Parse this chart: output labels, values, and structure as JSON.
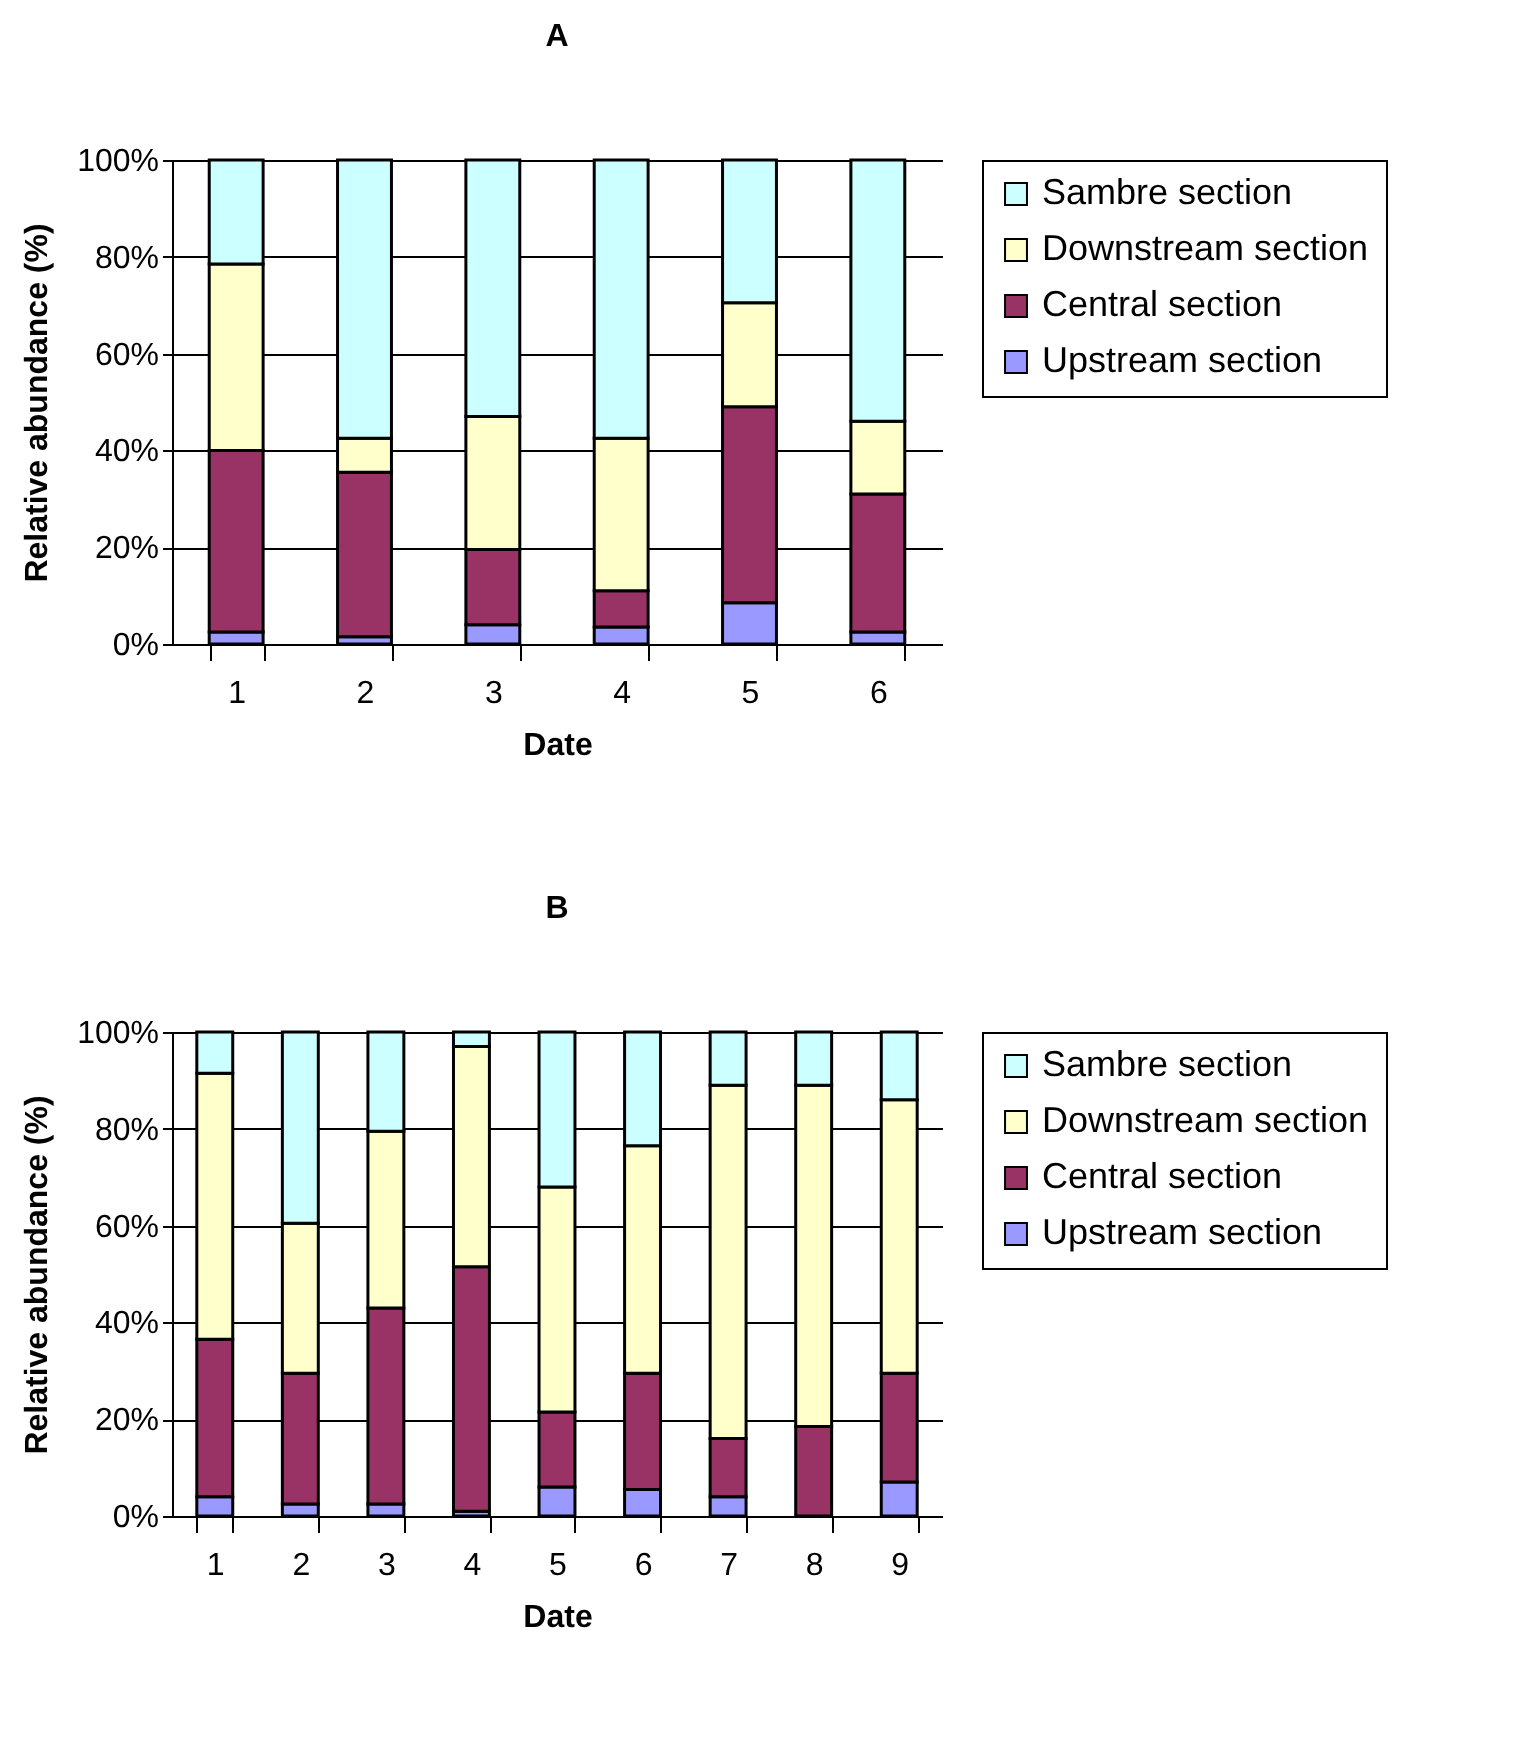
{
  "chart_data": [
    {
      "type": "bar",
      "title": "A",
      "xlabel": "Date",
      "ylabel": "Relative abundance (%)",
      "categories": [
        "1",
        "2",
        "3",
        "4",
        "5",
        "6"
      ],
      "stacked": true,
      "ylim": [
        0,
        100
      ],
      "yticks": [
        {
          "value": 0,
          "label": "0%"
        },
        {
          "value": 20,
          "label": "20%"
        },
        {
          "value": 40,
          "label": "40%"
        },
        {
          "value": 60,
          "label": "60%"
        },
        {
          "value": 80,
          "label": "80%"
        },
        {
          "value": 100,
          "label": "100%"
        }
      ],
      "grid": "y",
      "legend": "right",
      "series": [
        {
          "name": "Upstream section",
          "color": "#9999ff",
          "values": [
            2.5,
            1.5,
            4,
            3.5,
            8.5,
            2.5
          ]
        },
        {
          "name": "Central section",
          "color": "#993366",
          "values": [
            37.5,
            34,
            15.5,
            7.5,
            40.5,
            28.5
          ]
        },
        {
          "name": "Downstream section",
          "color": "#ffffcc",
          "values": [
            38.5,
            7,
            27.5,
            31.5,
            21.5,
            15
          ]
        },
        {
          "name": "Sambre section",
          "color": "#ccffff",
          "values": [
            21.5,
            57.5,
            53,
            57.5,
            29.5,
            54
          ]
        }
      ]
    },
    {
      "type": "bar",
      "title": "B",
      "xlabel": "Date",
      "ylabel": "Relative abundance (%)",
      "categories": [
        "1",
        "2",
        "3",
        "4",
        "5",
        "6",
        "7",
        "8",
        "9"
      ],
      "stacked": true,
      "ylim": [
        0,
        100
      ],
      "yticks": [
        {
          "value": 0,
          "label": "0%"
        },
        {
          "value": 20,
          "label": "20%"
        },
        {
          "value": 40,
          "label": "40%"
        },
        {
          "value": 60,
          "label": "60%"
        },
        {
          "value": 80,
          "label": "80%"
        },
        {
          "value": 100,
          "label": "100%"
        }
      ],
      "grid": "y",
      "legend": "right",
      "series": [
        {
          "name": "Upstream section",
          "color": "#9999ff",
          "values": [
            4,
            2.5,
            2.5,
            1,
            6,
            5.5,
            4,
            0,
            7
          ]
        },
        {
          "name": "Central section",
          "color": "#993366",
          "values": [
            32.5,
            27,
            40.5,
            50.5,
            15.5,
            24,
            12,
            18.5,
            22.5
          ]
        },
        {
          "name": "Downstream section",
          "color": "#ffffcc",
          "values": [
            55,
            31,
            36.5,
            45.5,
            46.5,
            47,
            73,
            70.5,
            56.5
          ]
        },
        {
          "name": "Sambre section",
          "color": "#ccffff",
          "values": [
            8.5,
            39.5,
            20.5,
            3,
            32,
            23.5,
            11,
            11,
            14
          ]
        }
      ]
    }
  ]
}
